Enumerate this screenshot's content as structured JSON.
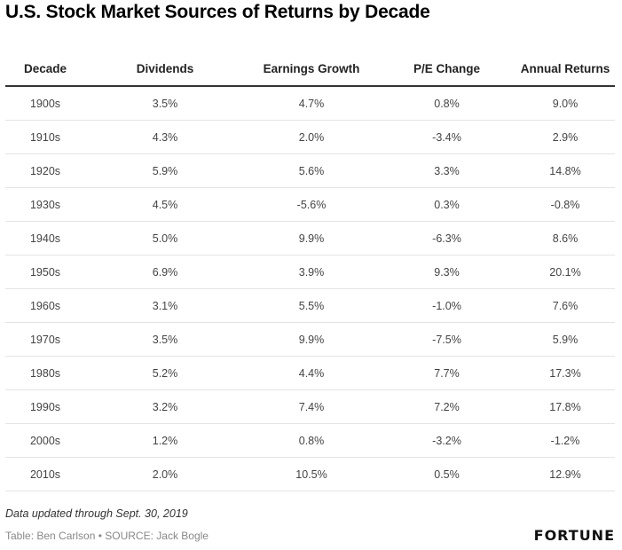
{
  "title": "U.S. Stock Market Sources of Returns by Decade",
  "footer": {
    "note": "Data updated through Sept. 30, 2019",
    "credit": "Table: Ben Carlson • SOURCE: Jack Bogle",
    "logo": "FORTUNE"
  },
  "chart_data": {
    "type": "table",
    "title": "U.S. Stock Market Sources of Returns by Decade",
    "columns": [
      "Decade",
      "Dividends",
      "Earnings Growth",
      "P/E Change",
      "Annual Returns"
    ],
    "rows": [
      [
        "1900s",
        "3.5%",
        "4.7%",
        "0.8%",
        "9.0%"
      ],
      [
        "1910s",
        "4.3%",
        "2.0%",
        "-3.4%",
        "2.9%"
      ],
      [
        "1920s",
        "5.9%",
        "5.6%",
        "3.3%",
        "14.8%"
      ],
      [
        "1930s",
        "4.5%",
        "-5.6%",
        "0.3%",
        "-0.8%"
      ],
      [
        "1940s",
        "5.0%",
        "9.9%",
        "-6.3%",
        "8.6%"
      ],
      [
        "1950s",
        "6.9%",
        "3.9%",
        "9.3%",
        "20.1%"
      ],
      [
        "1960s",
        "3.1%",
        "5.5%",
        "-1.0%",
        "7.6%"
      ],
      [
        "1970s",
        "3.5%",
        "9.9%",
        "-7.5%",
        "5.9%"
      ],
      [
        "1980s",
        "5.2%",
        "4.4%",
        "7.7%",
        "17.3%"
      ],
      [
        "1990s",
        "3.2%",
        "7.4%",
        "7.2%",
        "17.8%"
      ],
      [
        "2000s",
        "1.2%",
        "0.8%",
        "-3.2%",
        "-1.2%"
      ],
      [
        "2010s",
        "2.0%",
        "10.5%",
        "0.5%",
        "12.9%"
      ]
    ]
  }
}
